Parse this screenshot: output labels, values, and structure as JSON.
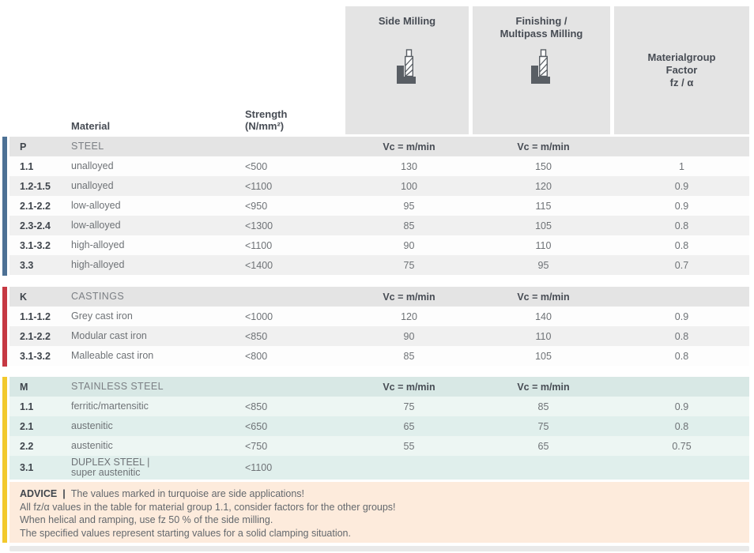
{
  "header": {
    "material_label": "Material",
    "strength_label": "Strength\n(N/mm²)",
    "side_milling_title": "Side Milling",
    "finishing_title": "Finishing /\nMultipass Milling",
    "factor_title": "Materialgroup\nFactor\nfz / α",
    "vc_label": "Vc = m/min"
  },
  "sections": [
    {
      "code": "P",
      "title": "STEEL",
      "bar_color": "#4d7195",
      "theme": "gray",
      "rows": [
        {
          "code": "1.1",
          "material": "unalloyed",
          "strength": "<500",
          "side_milling_vc": "130",
          "finishing_vc": "150",
          "factor": "1"
        },
        {
          "code": "1.2-1.5",
          "material": "unalloyed",
          "strength": "<1100",
          "side_milling_vc": "100",
          "finishing_vc": "120",
          "factor": "0.9"
        },
        {
          "code": "2.1-2.2",
          "material": "low-alloyed",
          "strength": "<950",
          "side_milling_vc": "95",
          "finishing_vc": "115",
          "factor": "0.9"
        },
        {
          "code": "2.3-2.4",
          "material": "low-alloyed",
          "strength": "<1300",
          "side_milling_vc": "85",
          "finishing_vc": "105",
          "factor": "0.8"
        },
        {
          "code": "3.1-3.2",
          "material": "high-alloyed",
          "strength": "<1100",
          "side_milling_vc": "90",
          "finishing_vc": "110",
          "factor": "0.8"
        },
        {
          "code": "3.3",
          "material": "high-alloyed",
          "strength": "<1400",
          "side_milling_vc": "75",
          "finishing_vc": "95",
          "factor": "0.7"
        }
      ]
    },
    {
      "code": "K",
      "title": "CASTINGS",
      "bar_color": "#c63843",
      "theme": "gray",
      "rows": [
        {
          "code": "1.1-1.2",
          "material": "Grey cast iron",
          "strength": "<1000",
          "side_milling_vc": "120",
          "finishing_vc": "140",
          "factor": "0.9"
        },
        {
          "code": "2.1-2.2",
          "material": "Modular cast iron",
          "strength": "<850",
          "side_milling_vc": "90",
          "finishing_vc": "110",
          "factor": "0.8"
        },
        {
          "code": "3.1-3.2",
          "material": "Malleable cast iron",
          "strength": "<800",
          "side_milling_vc": "85",
          "finishing_vc": "105",
          "factor": "0.8"
        }
      ]
    },
    {
      "code": "M",
      "title": "STAINLESS STEEL",
      "bar_color": "#f2c92d",
      "theme": "teal",
      "rows": [
        {
          "code": "1.1",
          "material": "ferritic/martensitic",
          "strength": "<850",
          "side_milling_vc": "75",
          "finishing_vc": "85",
          "factor": "0.9"
        },
        {
          "code": "2.1",
          "material": "austenitic",
          "strength": "<650",
          "side_milling_vc": "65",
          "finishing_vc": "75",
          "factor": "0.8"
        },
        {
          "code": "2.2",
          "material": "austenitic",
          "strength": "<750",
          "side_milling_vc": "55",
          "finishing_vc": "65",
          "factor": "0.75"
        },
        {
          "code": "3.1",
          "material": "DUPLEX STEEL |\nsuper austenitic",
          "strength": "<1100",
          "side_milling_vc": "",
          "finishing_vc": "",
          "factor": ""
        }
      ]
    }
  ],
  "advice": {
    "label": "ADVICE",
    "separator": "|",
    "line1": "The values marked in turquoise are side applications!",
    "line2": "All fz/α values in the table for material group 1.1, consider factors for the other groups!",
    "line3": "When helical and ramping, use fz 50 % of the side milling.",
    "line4": "The specified values represent starting values for a solid clamping situation."
  }
}
